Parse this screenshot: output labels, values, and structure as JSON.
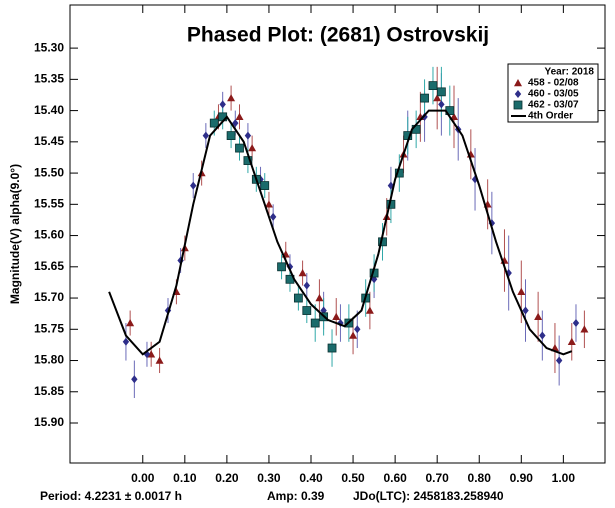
{
  "chart_data": {
    "type": "scatter",
    "title": "Phased Plot: (2681) Ostrovskij",
    "y_label": "Magnitude(V) alpha(9.0°)",
    "footer": [
      "Period: 4.2231 ± 0.0017 h",
      "Amp: 0.39",
      "JDo(LTC): 2458183.258940"
    ],
    "legend_title": "Year: 2018",
    "legend": "upper right",
    "xlim": [
      -0.173,
      1.099
    ],
    "ylim": [
      15.964,
      15.231
    ],
    "xticks": [
      {
        "value": 0,
        "label": "0.00"
      },
      {
        "value": 0.1,
        "label": "0.10"
      },
      {
        "value": 0.2,
        "label": "0.20"
      },
      {
        "value": 0.3,
        "label": "0.30"
      },
      {
        "value": 0.4,
        "label": "0.40"
      },
      {
        "value": 0.5,
        "label": "0.50"
      },
      {
        "value": 0.6,
        "label": "0.60"
      },
      {
        "value": 0.7,
        "label": "0.70"
      },
      {
        "value": 0.8,
        "label": "0.80"
      },
      {
        "value": 0.9,
        "label": "0.90"
      },
      {
        "value": 1,
        "label": "1.00"
      }
    ],
    "yticks": [
      {
        "value": 15.3,
        "label": "15.30"
      },
      {
        "value": 15.35,
        "label": "15.35"
      },
      {
        "value": 15.4,
        "label": "15.40"
      },
      {
        "value": 15.45,
        "label": "15.45"
      },
      {
        "value": 15.5,
        "label": "15.50"
      },
      {
        "value": 15.55,
        "label": "15.55"
      },
      {
        "value": 15.6,
        "label": "15.60"
      },
      {
        "value": 15.65,
        "label": "15.65"
      },
      {
        "value": 15.7,
        "label": "15.70"
      },
      {
        "value": 15.75,
        "label": "15.75"
      },
      {
        "value": 15.8,
        "label": "15.80"
      },
      {
        "value": 15.85,
        "label": "15.85"
      },
      {
        "value": 15.9,
        "label": "15.90"
      }
    ],
    "series": [
      {
        "name": "458 - 02/08",
        "marker": "triangle",
        "color": "#8b1a1a",
        "err_color": "#b05050",
        "x": [
          -0.03,
          0.02,
          0.04,
          0.08,
          0.1,
          0.14,
          0.18,
          0.21,
          0.23,
          0.26,
          0.3,
          0.34,
          0.38,
          0.42,
          0.46,
          0.5,
          0.54,
          0.58,
          0.62,
          0.66,
          0.7,
          0.74,
          0.78,
          0.82,
          0.86,
          0.9,
          0.94,
          0.98,
          1.02,
          1.05
        ],
        "y": [
          15.74,
          15.79,
          15.8,
          15.69,
          15.62,
          15.5,
          15.41,
          15.38,
          15.41,
          15.46,
          15.55,
          15.63,
          15.66,
          15.7,
          15.73,
          15.76,
          15.72,
          15.57,
          15.47,
          15.41,
          15.38,
          15.41,
          15.47,
          15.55,
          15.64,
          15.69,
          15.73,
          15.78,
          15.77,
          15.75
        ],
        "err": [
          0.02,
          0.02,
          0.02,
          0.02,
          0.02,
          0.02,
          0.02,
          0.02,
          0.02,
          0.02,
          0.02,
          0.02,
          0.02,
          0.03,
          0.03,
          0.03,
          0.03,
          0.03,
          0.03,
          0.04,
          0.05,
          0.05,
          0.04,
          0.04,
          0.05,
          0.05,
          0.04,
          0.04,
          0.03,
          0.03
        ]
      },
      {
        "name": "460 - 03/05",
        "marker": "diamond",
        "color": "#2e2e8a",
        "err_color": "#6a6ab8",
        "x": [
          -0.04,
          -0.02,
          0.01,
          0.06,
          0.09,
          0.12,
          0.15,
          0.19,
          0.22,
          0.25,
          0.28,
          0.31,
          0.35,
          0.39,
          0.43,
          0.47,
          0.51,
          0.55,
          0.59,
          0.63,
          0.67,
          0.71,
          0.75,
          0.79,
          0.83,
          0.87,
          0.91,
          0.95,
          0.99,
          1.03
        ],
        "y": [
          15.77,
          15.83,
          15.79,
          15.72,
          15.64,
          15.52,
          15.44,
          15.39,
          15.42,
          15.44,
          15.51,
          15.57,
          15.65,
          15.68,
          15.72,
          15.74,
          15.75,
          15.67,
          15.52,
          15.44,
          15.41,
          15.39,
          15.43,
          15.51,
          15.58,
          15.66,
          15.72,
          15.76,
          15.8,
          15.74
        ],
        "err": [
          0.03,
          0.03,
          0.02,
          0.02,
          0.02,
          0.02,
          0.02,
          0.02,
          0.02,
          0.02,
          0.02,
          0.02,
          0.02,
          0.02,
          0.03,
          0.03,
          0.03,
          0.03,
          0.03,
          0.04,
          0.04,
          0.05,
          0.05,
          0.05,
          0.05,
          0.06,
          0.05,
          0.04,
          0.04,
          0.03
        ]
      },
      {
        "name": "462 - 03/07",
        "marker": "square",
        "color": "#1a6b6b",
        "err_color": "#30a8a8",
        "x": [
          0.17,
          0.19,
          0.21,
          0.23,
          0.25,
          0.27,
          0.29,
          0.33,
          0.35,
          0.37,
          0.39,
          0.41,
          0.43,
          0.45,
          0.49,
          0.53,
          0.55,
          0.57,
          0.59,
          0.61,
          0.63,
          0.65,
          0.67,
          0.69,
          0.71,
          0.73
        ],
        "y": [
          15.42,
          15.41,
          15.44,
          15.46,
          15.48,
          15.51,
          15.52,
          15.65,
          15.67,
          15.7,
          15.72,
          15.74,
          15.73,
          15.78,
          15.74,
          15.7,
          15.66,
          15.61,
          15.55,
          15.5,
          15.44,
          15.43,
          15.38,
          15.36,
          15.37,
          15.4
        ],
        "err": [
          0.02,
          0.02,
          0.02,
          0.02,
          0.02,
          0.02,
          0.02,
          0.02,
          0.02,
          0.02,
          0.02,
          0.03,
          0.03,
          0.03,
          0.03,
          0.03,
          0.03,
          0.03,
          0.03,
          0.03,
          0.03,
          0.03,
          0.03,
          0.03,
          0.04,
          0.04
        ]
      }
    ],
    "fit": {
      "name": "4th Order",
      "color": "#000000",
      "x": [
        -0.08,
        -0.04,
        0.0,
        0.04,
        0.08,
        0.12,
        0.16,
        0.2,
        0.24,
        0.28,
        0.32,
        0.36,
        0.4,
        0.44,
        0.48,
        0.52,
        0.56,
        0.6,
        0.64,
        0.68,
        0.72,
        0.76,
        0.8,
        0.84,
        0.88,
        0.92,
        0.96,
        1.0,
        1.02
      ],
      "y": [
        15.69,
        15.76,
        15.79,
        15.77,
        15.68,
        15.55,
        15.44,
        15.41,
        15.45,
        15.53,
        15.61,
        15.67,
        15.71,
        15.735,
        15.745,
        15.72,
        15.63,
        15.51,
        15.43,
        15.4,
        15.4,
        15.44,
        15.52,
        15.61,
        15.69,
        15.75,
        15.78,
        15.79,
        15.785
      ]
    }
  }
}
